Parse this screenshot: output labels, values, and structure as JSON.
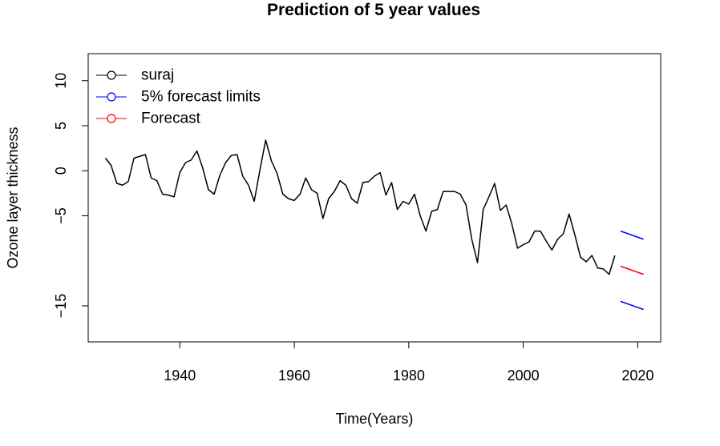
{
  "chart_data": {
    "type": "line",
    "title": "Prediction of 5 year values",
    "xlabel": "Time(Years)",
    "ylabel": "Ozone layer thickness",
    "xlim": [
      1924,
      2024
    ],
    "ylim": [
      -19,
      13
    ],
    "xticks": [
      1940,
      1960,
      1980,
      2000,
      2020
    ],
    "yticks": [
      10,
      5,
      0,
      -5,
      -15
    ],
    "legend_position": "top-left",
    "series": [
      {
        "name": "suraj",
        "color": "#000000",
        "x": [
          1927,
          1928,
          1929,
          1930,
          1931,
          1932,
          1933,
          1934,
          1935,
          1936,
          1937,
          1938,
          1939,
          1940,
          1941,
          1942,
          1943,
          1944,
          1945,
          1946,
          1947,
          1948,
          1949,
          1950,
          1951,
          1952,
          1953,
          1954,
          1955,
          1956,
          1957,
          1958,
          1959,
          1960,
          1961,
          1962,
          1963,
          1964,
          1965,
          1966,
          1967,
          1968,
          1969,
          1970,
          1971,
          1972,
          1973,
          1974,
          1975,
          1976,
          1977,
          1978,
          1979,
          1980,
          1981,
          1982,
          1983,
          1984,
          1985,
          1986,
          1987,
          1988,
          1989,
          1990,
          1991,
          1992,
          1993,
          1994,
          1995,
          1996,
          1997,
          1998,
          1999,
          2000,
          2001,
          2002,
          2003,
          2004,
          2005,
          2006,
          2007,
          2008,
          2009,
          2010,
          2011,
          2012,
          2013,
          2014,
          2015,
          2016
        ],
        "y": [
          1.4,
          0.6,
          -1.4,
          -1.6,
          -1.2,
          1.4,
          1.6,
          1.8,
          -0.8,
          -1.1,
          -2.6,
          -2.7,
          -2.9,
          -0.2,
          0.9,
          1.2,
          2.2,
          0.3,
          -2.1,
          -2.6,
          -0.5,
          0.9,
          1.7,
          1.8,
          -0.6,
          -1.6,
          -3.4,
          0.1,
          3.4,
          1.1,
          -0.3,
          -2.6,
          -3.1,
          -3.3,
          -2.6,
          -0.8,
          -2.1,
          -2.5,
          -5.3,
          -3.1,
          -2.3,
          -1.1,
          -1.6,
          -3.1,
          -3.6,
          -1.3,
          -1.2,
          -0.6,
          -0.2,
          -2.7,
          -1.3,
          -4.3,
          -3.4,
          -3.7,
          -2.6,
          -5.0,
          -6.7,
          -4.5,
          -4.3,
          -2.3,
          -2.3,
          -2.3,
          -2.6,
          -3.8,
          -7.6,
          -10.2,
          -4.3,
          -2.9,
          -1.4,
          -4.4,
          -3.8,
          -5.9,
          -8.6,
          -8.2,
          -7.9,
          -6.7,
          -6.7,
          -7.8,
          -8.8,
          -7.6,
          -7.0,
          -4.8,
          -7.1,
          -9.6,
          -10.1,
          -9.4,
          -10.8,
          -10.9,
          -11.5,
          -9.4
        ]
      },
      {
        "name": "5% forecast limits",
        "color": "#0000ff",
        "segments": [
          {
            "x": [
              2017,
              2021
            ],
            "y": [
              -6.7,
              -7.6
            ]
          },
          {
            "x": [
              2017,
              2021
            ],
            "y": [
              -14.5,
              -15.4
            ]
          }
        ]
      },
      {
        "name": "Forecast",
        "color": "#ff0000",
        "x": [
          2017,
          2021
        ],
        "y": [
          -10.6,
          -11.5
        ]
      }
    ]
  }
}
